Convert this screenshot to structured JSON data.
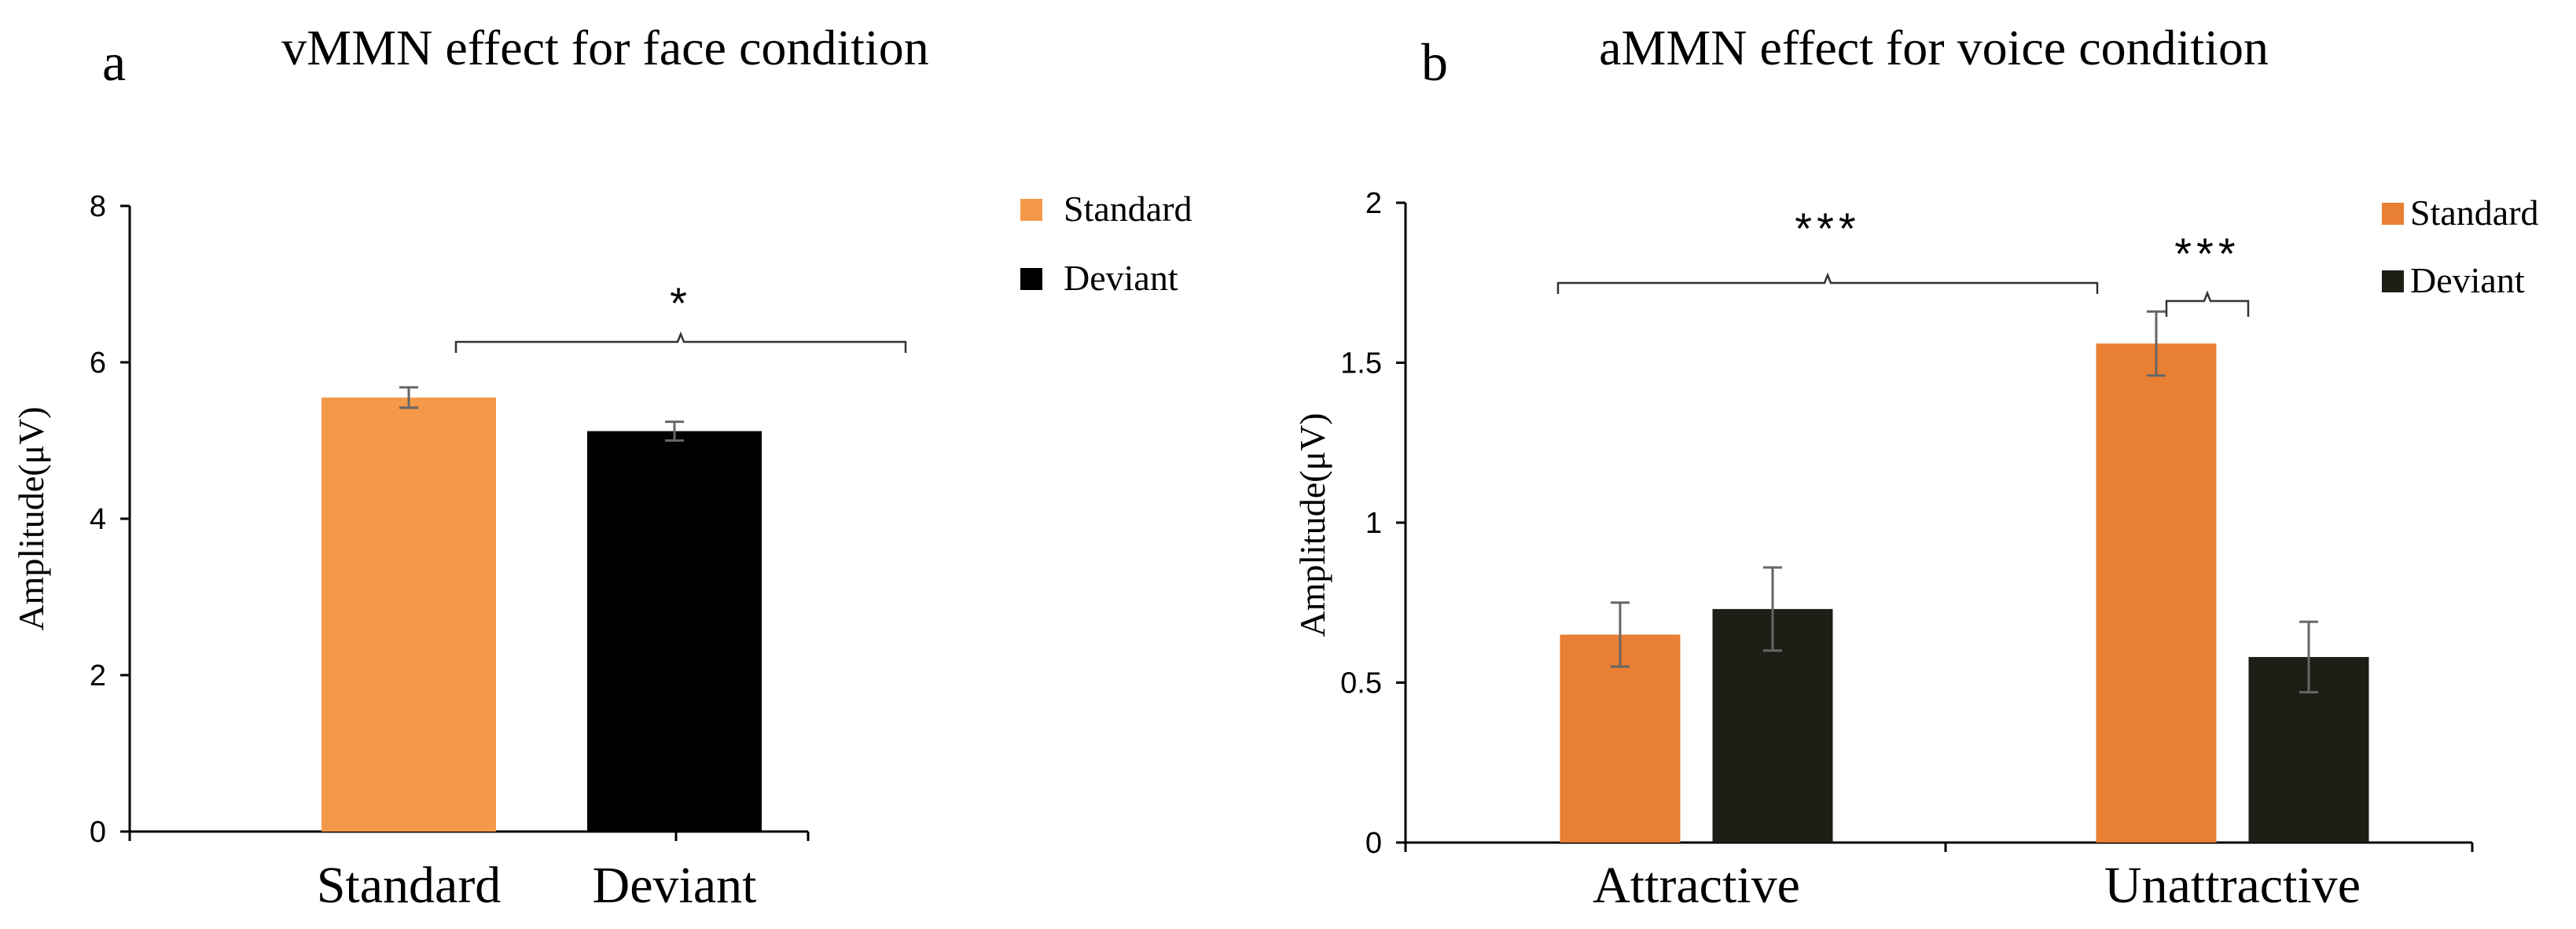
{
  "chart_data": [
    {
      "panel_label": "a",
      "type": "bar",
      "title": "vMMN effect for face condition",
      "ylabel": "Amplitude(μV)",
      "xlabel": "",
      "ylim": [
        0,
        8
      ],
      "yticks": [
        0,
        2,
        4,
        6,
        8
      ],
      "ytick_labels": [
        "0",
        "2",
        "4",
        "6",
        "8"
      ],
      "grid": false,
      "legend_position": "top-right",
      "categories": [
        "Standard",
        "Deviant"
      ],
      "series": [
        {
          "name": "Standard",
          "color": "#F4994A",
          "values": [
            5.55,
            null
          ],
          "errors": [
            0.13,
            null
          ]
        },
        {
          "name": "Deviant",
          "color": "#000000",
          "values": [
            null,
            5.12
          ],
          "errors": [
            null,
            0.12
          ]
        }
      ],
      "significance": [
        {
          "label": "*",
          "between": [
            "Standard",
            "Deviant"
          ]
        }
      ]
    },
    {
      "panel_label": "b",
      "type": "bar",
      "title": "aMMN effect for voice condition",
      "ylabel": "Amplitude(μV)",
      "xlabel": "",
      "ylim": [
        0,
        2
      ],
      "yticks": [
        0,
        0.5,
        1,
        1.5,
        2
      ],
      "ytick_labels": [
        "0",
        "0.5",
        "1",
        "1.5",
        "2"
      ],
      "grid": false,
      "legend_position": "top-right",
      "categories": [
        "Attractive",
        "Unattractive"
      ],
      "series": [
        {
          "name": "Standard",
          "color": "#E97F33",
          "values": [
            0.65,
            1.56
          ],
          "errors": [
            0.1,
            0.1
          ]
        },
        {
          "name": "Deviant",
          "color": "#1E1E17",
          "values": [
            0.73,
            0.58
          ],
          "errors": [
            0.13,
            0.11
          ]
        }
      ],
      "significance": [
        {
          "label": "***",
          "between": [
            "Attractive",
            "Unattractive"
          ]
        },
        {
          "label": "***",
          "between": [
            "Unattractive Standard",
            "Unattractive Deviant"
          ]
        }
      ]
    }
  ]
}
